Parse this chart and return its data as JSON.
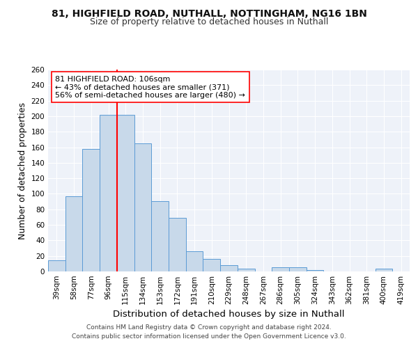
{
  "title_line1": "81, HIGHFIELD ROAD, NUTHALL, NOTTINGHAM, NG16 1BN",
  "title_line2": "Size of property relative to detached houses in Nuthall",
  "xlabel": "Distribution of detached houses by size in Nuthall",
  "ylabel": "Number of detached properties",
  "categories": [
    "39sqm",
    "58sqm",
    "77sqm",
    "96sqm",
    "115sqm",
    "134sqm",
    "153sqm",
    "172sqm",
    "191sqm",
    "210sqm",
    "229sqm",
    "248sqm",
    "267sqm",
    "286sqm",
    "305sqm",
    "324sqm",
    "343sqm",
    "362sqm",
    "381sqm",
    "400sqm",
    "419sqm"
  ],
  "values": [
    14,
    97,
    158,
    202,
    202,
    165,
    91,
    69,
    26,
    16,
    8,
    4,
    0,
    5,
    5,
    2,
    0,
    0,
    0,
    4,
    0
  ],
  "bar_color": "#c8d9ea",
  "bar_edge_color": "#5b9bd5",
  "red_line_x": 3.5,
  "annotation_text": "81 HIGHFIELD ROAD: 106sqm\n← 43% of detached houses are smaller (371)\n56% of semi-detached houses are larger (480) →",
  "annotation_box_color": "white",
  "annotation_box_edge_color": "red",
  "red_line_color": "red",
  "ylim": [
    0,
    260
  ],
  "yticks": [
    0,
    20,
    40,
    60,
    80,
    100,
    120,
    140,
    160,
    180,
    200,
    220,
    240,
    260
  ],
  "footer_line1": "Contains HM Land Registry data © Crown copyright and database right 2024.",
  "footer_line2": "Contains public sector information licensed under the Open Government Licence v3.0.",
  "background_color": "#eef2f9",
  "grid_color": "#ffffff",
  "title_fontsize": 10,
  "subtitle_fontsize": 9,
  "axis_label_fontsize": 9,
  "tick_fontsize": 7.5,
  "annotation_fontsize": 8,
  "footer_fontsize": 6.5
}
